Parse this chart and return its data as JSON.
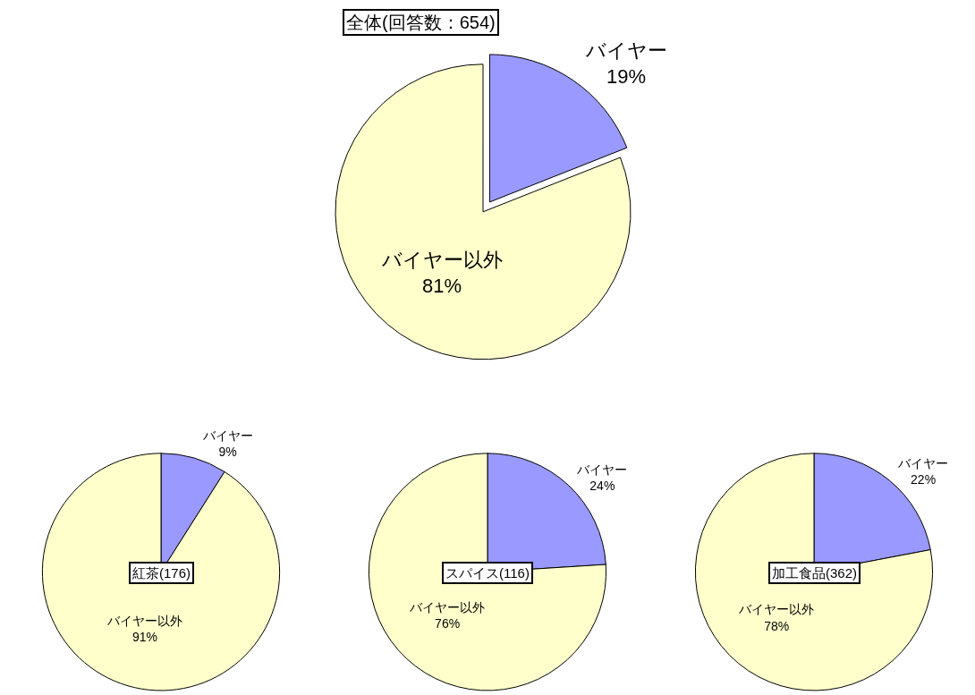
{
  "chart_data": [
    {
      "type": "pie",
      "title": "全体(回答数：654)",
      "categories": [
        "バイヤー",
        "バイヤー以外"
      ],
      "values": [
        19,
        81
      ],
      "colors": [
        "#9999ff",
        "#ffffcc"
      ],
      "value_labels": [
        "19%",
        "81%"
      ],
      "legend": false
    },
    {
      "type": "pie",
      "title": "紅茶(176)",
      "categories": [
        "バイヤー",
        "バイヤー以外"
      ],
      "values": [
        9,
        91
      ],
      "colors": [
        "#9999ff",
        "#ffffcc"
      ],
      "value_labels": [
        "9%",
        "91%"
      ],
      "legend": false
    },
    {
      "type": "pie",
      "title": "スパイス(116)",
      "categories": [
        "バイヤー",
        "バイヤー以外"
      ],
      "values": [
        24,
        76
      ],
      "colors": [
        "#9999ff",
        "#ffffcc"
      ],
      "value_labels": [
        "24%",
        "76%"
      ],
      "legend": false
    },
    {
      "type": "pie",
      "title": "加工食品(362)",
      "categories": [
        "バイヤー",
        "バイヤー以外"
      ],
      "values": [
        22,
        78
      ],
      "colors": [
        "#9999ff",
        "#ffffcc"
      ],
      "value_labels": [
        "22%",
        "78%"
      ],
      "legend": false
    }
  ]
}
